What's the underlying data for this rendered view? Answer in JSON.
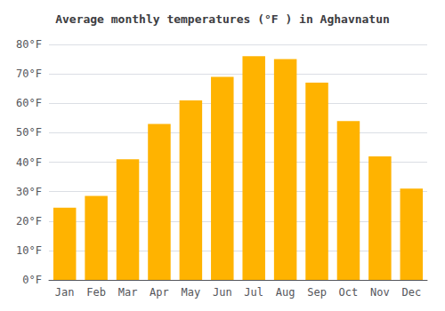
{
  "chart_data": {
    "type": "bar",
    "title": "Average monthly temperatures (°F ) in Aghavnatun",
    "categories": [
      "Jan",
      "Feb",
      "Mar",
      "Apr",
      "May",
      "Jun",
      "Jul",
      "Aug",
      "Sep",
      "Oct",
      "Nov",
      "Dec"
    ],
    "values": [
      24.5,
      28.5,
      41.0,
      53.0,
      61.0,
      69.0,
      76.0,
      75.0,
      67.0,
      54.0,
      42.0,
      31.0
    ],
    "color": "#FFB300",
    "ylim": [
      0,
      80
    ],
    "yticks": [
      {
        "value": 0,
        "label": "0°F"
      },
      {
        "value": 10,
        "label": "10°F"
      },
      {
        "value": 20,
        "label": "20°F"
      },
      {
        "value": 30,
        "label": "30°F"
      },
      {
        "value": 40,
        "label": "40°F"
      },
      {
        "value": 50,
        "label": "50°F"
      },
      {
        "value": 60,
        "label": "60°F"
      },
      {
        "value": 70,
        "label": "70°F"
      },
      {
        "value": 80,
        "label": "80°F"
      }
    ],
    "grid": true
  }
}
